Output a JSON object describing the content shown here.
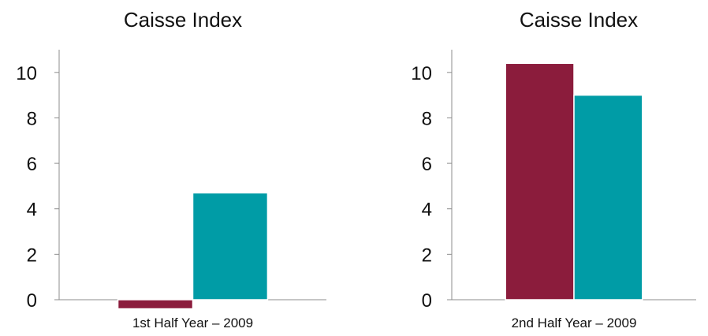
{
  "chart_data": [
    {
      "type": "bar",
      "title": "Caisse Index",
      "categories": [
        "1st Half Year – 2009"
      ],
      "series": [
        {
          "color": "#8b1c3c",
          "values": [
            -0.4
          ]
        },
        {
          "color": "#009ca6",
          "values": [
            4.7
          ]
        }
      ],
      "xlabel": "",
      "ylabel": "",
      "ylim": [
        0,
        11
      ],
      "yticks": [
        0,
        2,
        4,
        6,
        8,
        10
      ],
      "grid": false,
      "legend": "none"
    },
    {
      "type": "bar",
      "title": "Caisse Index",
      "categories": [
        "2nd Half Year – 2009"
      ],
      "series": [
        {
          "color": "#8b1c3c",
          "values": [
            10.4
          ]
        },
        {
          "color": "#009ca6",
          "values": [
            9.0
          ]
        }
      ],
      "xlabel": "",
      "ylabel": "",
      "ylim": [
        0,
        11
      ],
      "yticks": [
        0,
        2,
        4,
        6,
        8,
        10
      ],
      "grid": false,
      "legend": "none"
    }
  ]
}
